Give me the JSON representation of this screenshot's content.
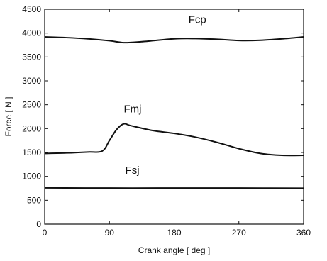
{
  "chart_data": {
    "type": "line",
    "xlabel": "Crank angle [ deg ]",
    "ylabel": "Force [ N ]",
    "xlim": [
      0,
      360
    ],
    "ylim": [
      0,
      4500
    ],
    "xticks": [
      0,
      90,
      180,
      270,
      360
    ],
    "yticks": [
      0,
      500,
      1000,
      1500,
      2000,
      2500,
      3000,
      3500,
      4000,
      4500
    ],
    "grid": false,
    "legend": "none (series labeled inline)",
    "line_color": "#111111",
    "series": [
      {
        "name": "Fcp",
        "x": [
          0,
          30,
          60,
          90,
          110,
          135,
          180,
          210,
          240,
          270,
          300,
          330,
          360
        ],
        "y": [
          3920,
          3905,
          3880,
          3840,
          3800,
          3820,
          3880,
          3885,
          3870,
          3845,
          3850,
          3880,
          3920
        ]
      },
      {
        "name": "Fmj",
        "x": [
          0,
          30,
          60,
          80,
          90,
          100,
          110,
          120,
          150,
          180,
          210,
          240,
          270,
          300,
          330,
          360
        ],
        "y": [
          1480,
          1490,
          1510,
          1530,
          1750,
          1980,
          2100,
          2060,
          1960,
          1900,
          1820,
          1710,
          1580,
          1480,
          1440,
          1440
        ]
      },
      {
        "name": "Fsj",
        "x": [
          0,
          90,
          180,
          270,
          360
        ],
        "y": [
          760,
          755,
          755,
          755,
          752
        ]
      }
    ]
  }
}
